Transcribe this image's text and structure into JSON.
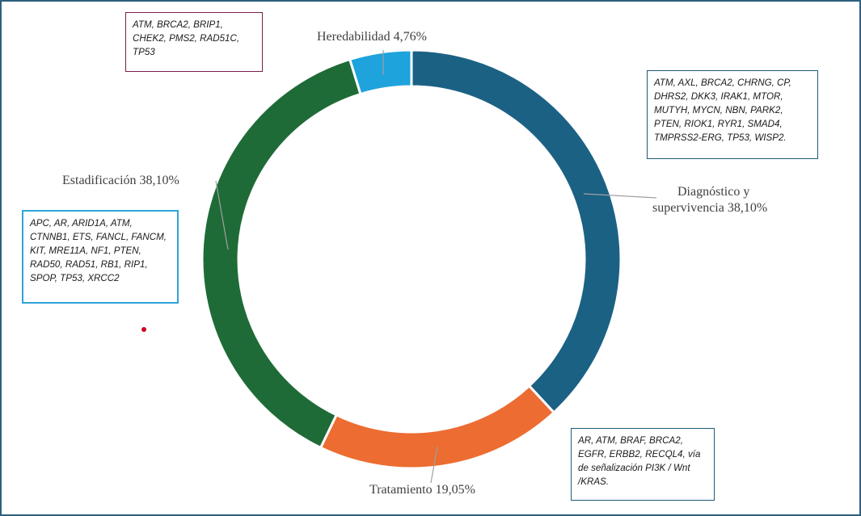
{
  "chart_data": {
    "type": "donut",
    "title": "",
    "slices": [
      {
        "label": "Diagnóstico y supervivencia",
        "value": 38.1,
        "display": "Diagnóstico y supervivencia 38,10%",
        "color": "#1b6184"
      },
      {
        "label": "Tratamiento",
        "value": 19.05,
        "display": "Tratamiento  19,05%",
        "color": "#ec6c31"
      },
      {
        "label": "Estadificación",
        "value": 38.1,
        "display": "Estadificación 38,10%",
        "color": "#1f6b37"
      },
      {
        "label": "Heredabilidad",
        "value": 4.76,
        "display": "Heredabilidad 4,76%",
        "color": "#1fa3dc"
      }
    ],
    "labels": {
      "diagnostico_line1": "Diagnóstico y",
      "diagnostico_line2": "supervivencia 38,10%",
      "tratamiento": "Tratamiento  19,05%",
      "estadificacion": "Estadificación 38,10%",
      "heredabilidad": "Heredabilidad 4,76%"
    },
    "gene_boxes": {
      "heredabilidad": "ATM, BRCA2, BRIP1, CHEK2, PMS2, RAD51C, TP53",
      "diagnostico": "ATM, AXL, BRCA2, CHRNG, CP, DHRS2, DKK3, IRAK1, MTOR, MUTYH, MYCN, NBN, PARK2, PTEN, RIOK1, RYR1, SMAD4, TMPRSS2-ERG, TP53, WISP2.",
      "estadificacion": "APC, AR, ARID1A, ATM, CTNNB1, ETS, FANCL, FANCM, KIT, MRE11A, NF1, PTEN, RAD50, RAD51, RB1, RIP1, SPOP, TP53, XRCC2",
      "tratamiento": "AR, ATM, BRAF, BRCA2, EGFR, ERBB2, RECQL4, vía de señalización PI3K / Wnt /KRAS."
    },
    "legend": "none"
  }
}
